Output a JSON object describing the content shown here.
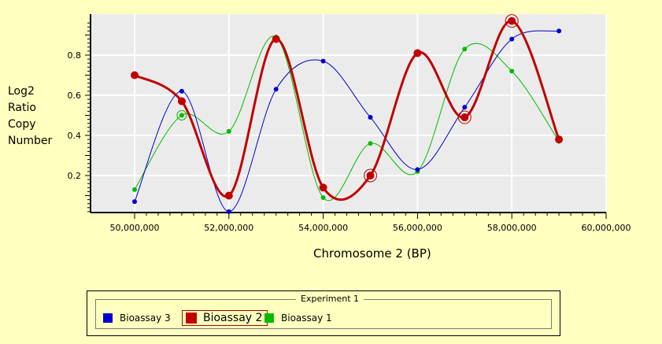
{
  "chart_data": {
    "type": "line",
    "xlabel": "Chromosome 2 (BP)",
    "ylabel": "Log2 Ratio Copy Number",
    "ylabel_lines": [
      "Log2",
      "Ratio",
      "Copy",
      "Number"
    ],
    "xlim": [
      50000000,
      60000000
    ],
    "ylim": [
      0,
      1
    ],
    "x_ticks": [
      50000000,
      52000000,
      54000000,
      56000000,
      58000000,
      60000000
    ],
    "x_tick_labels": [
      "50,000,000",
      "52,000,000",
      "54,000,000",
      "56,000,000",
      "58,000,000",
      "60,000,000"
    ],
    "y_ticks": [
      0.2,
      0.4,
      0.6,
      0.8
    ],
    "y_tick_labels": [
      "0.2",
      "0.4",
      "0.6",
      "0.8"
    ],
    "grid": true,
    "legend_title": "Experiment 1",
    "legend_position": "bottom",
    "x": [
      50000000,
      51000000,
      52000000,
      53000000,
      54000000,
      55000000,
      56000000,
      57000000,
      58000000,
      59000000
    ],
    "series": [
      {
        "name": "Bioassay 3",
        "color": "#0000cc",
        "selected": false,
        "values": [
          0.07,
          0.62,
          0.02,
          0.63,
          0.77,
          0.49,
          0.23,
          0.54,
          0.88,
          0.92
        ],
        "highlighted_indices": []
      },
      {
        "name": "Bioassay 2",
        "color": "#c00000",
        "selected": true,
        "values": [
          0.7,
          0.57,
          0.1,
          0.88,
          0.14,
          0.2,
          0.81,
          0.49,
          0.97,
          0.38
        ],
        "highlighted_indices": [
          5,
          7,
          8
        ]
      },
      {
        "name": "Bioassay 1",
        "color": "#00bb00",
        "selected": false,
        "values": [
          0.13,
          0.5,
          0.42,
          0.89,
          0.09,
          0.36,
          0.22,
          0.83,
          0.72,
          0.37
        ],
        "highlighted_indices": [
          1
        ]
      }
    ]
  },
  "legend_order": [
    0,
    1,
    2
  ]
}
